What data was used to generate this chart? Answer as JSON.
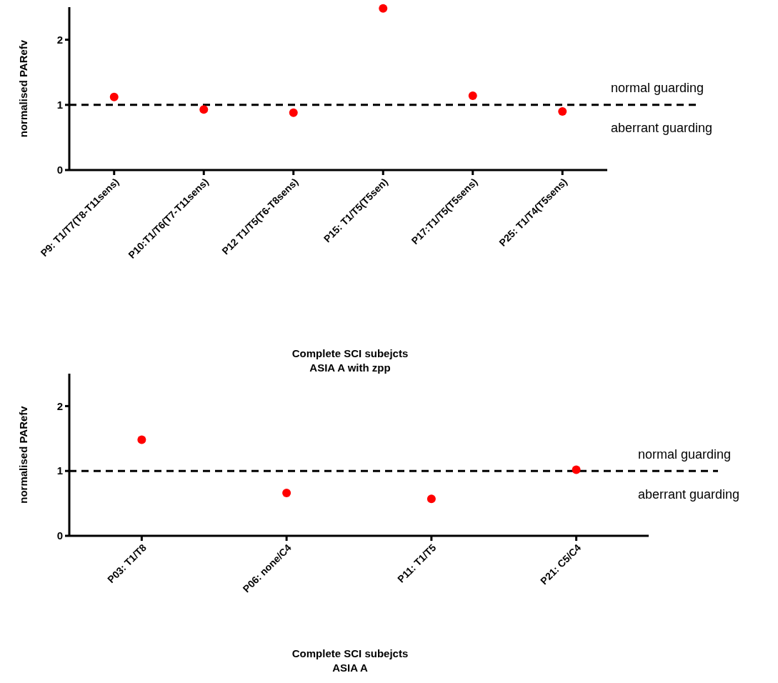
{
  "chart_data": [
    {
      "type": "scatter",
      "categories": [
        "P9: T1/T7(T8-T11sens)",
        "P10:T1/T6(T7-T11sens)",
        "P12 T1/T5(T6-T8sens)",
        "P15: T1/T5(T5sen)",
        "P17:T1/T5(T5sens)",
        "P25: T1/T4(T5sens)"
      ],
      "series": [
        {
          "color": "#ff0000",
          "values": [
            1.12,
            0.93,
            0.88,
            2.48,
            1.14,
            0.9
          ]
        }
      ],
      "ylabel": "normalised PARefv",
      "xlabel": "Complete SCI subejcts\nASIA A with zpp",
      "ylim": [
        0,
        2.5
      ],
      "yticks": [
        0,
        1,
        2
      ],
      "marker": "circle",
      "ref_lines": [
        {
          "axis": "y",
          "value": 1,
          "line_style": "dashed",
          "color": "#000000"
        }
      ],
      "annotations": [
        "normal guarding",
        "aberrant guarding"
      ]
    },
    {
      "type": "scatter",
      "categories": [
        "P03: T1/T8",
        "P06: none/C4",
        "P11: T1/T5",
        "P21: C5/C4"
      ],
      "series": [
        {
          "color": "#ff0000",
          "values": [
            1.48,
            0.66,
            0.57,
            1.02
          ]
        }
      ],
      "ylabel": "normalised PARefv",
      "xlabel": "Complete SCI subejcts\nASIA A",
      "ylim": [
        0,
        2.5
      ],
      "yticks": [
        0,
        1,
        2
      ],
      "marker": "circle",
      "ref_lines": [
        {
          "axis": "y",
          "value": 1,
          "line_style": "dashed",
          "color": "#000000"
        }
      ],
      "annotations": [
        "normal guarding",
        "aberrant guarding"
      ]
    }
  ]
}
